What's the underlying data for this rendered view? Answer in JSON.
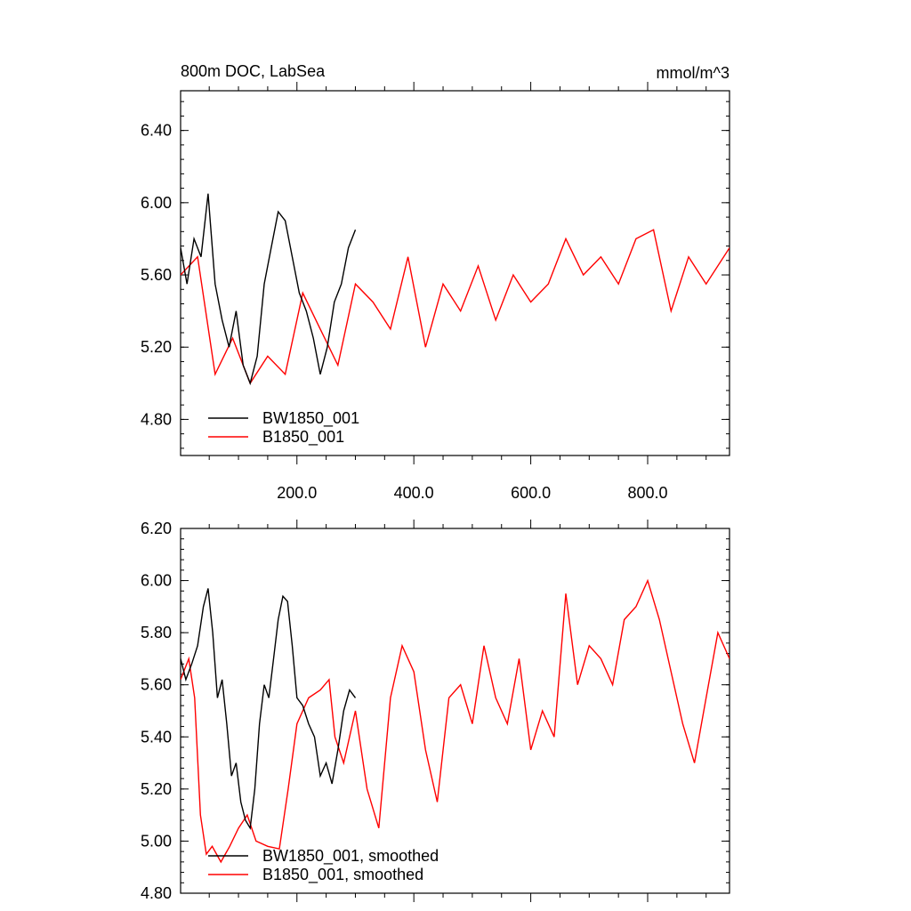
{
  "chart_data": [
    {
      "type": "line",
      "title": "800m DOC, LabSea",
      "units": "mmol/m^3",
      "xlim": [
        1,
        940
      ],
      "ylim": [
        4.6,
        6.62
      ],
      "xticks": [
        200,
        400,
        600,
        800
      ],
      "xtick_labels": [
        "200.0",
        "400.0",
        "600.0",
        "800.0"
      ],
      "yticks": [
        4.8,
        5.2,
        5.6,
        6.0,
        6.4
      ],
      "ytick_labels": [
        "4.80",
        "5.20",
        "5.60",
        "6.00",
        "6.40"
      ],
      "legend_position": "bottom-left",
      "series": [
        {
          "name": "BW1850_001",
          "color": "#000000",
          "x": [
            1,
            12,
            24,
            36,
            48,
            60,
            72,
            84,
            96,
            108,
            120,
            132,
            144,
            156,
            168,
            180,
            192,
            204,
            216,
            228,
            240,
            252,
            264,
            276,
            288,
            300
          ],
          "y": [
            5.75,
            5.55,
            5.8,
            5.7,
            6.05,
            5.55,
            5.35,
            5.2,
            5.4,
            5.1,
            5.0,
            5.15,
            5.55,
            5.75,
            5.95,
            5.9,
            5.7,
            5.5,
            5.4,
            5.25,
            5.05,
            5.2,
            5.45,
            5.55,
            5.75,
            5.85
          ]
        },
        {
          "name": "B1850_001",
          "color": "#ff0000",
          "x": [
            1,
            30,
            60,
            90,
            120,
            150,
            180,
            210,
            240,
            270,
            300,
            330,
            360,
            390,
            420,
            450,
            480,
            510,
            540,
            570,
            600,
            630,
            660,
            690,
            720,
            750,
            780,
            810,
            840,
            870,
            900,
            940
          ],
          "y": [
            5.6,
            5.7,
            5.05,
            5.25,
            5.0,
            5.15,
            5.05,
            5.5,
            5.3,
            5.1,
            5.55,
            5.45,
            5.3,
            5.7,
            5.2,
            5.55,
            5.4,
            5.65,
            5.35,
            5.6,
            5.45,
            5.55,
            5.8,
            5.6,
            5.7,
            5.55,
            5.8,
            5.85,
            5.4,
            5.7,
            5.55,
            5.75
          ]
        }
      ]
    },
    {
      "type": "line",
      "xlim": [
        1,
        940
      ],
      "ylim": [
        4.8,
        6.2
      ],
      "yticks": [
        4.8,
        5.0,
        5.2,
        5.4,
        5.6,
        5.8,
        6.0,
        6.2
      ],
      "ytick_labels": [
        "4.80",
        "5.00",
        "5.20",
        "5.40",
        "5.60",
        "5.80",
        "6.00",
        "6.20"
      ],
      "legend_position": "bottom-left",
      "series": [
        {
          "name": "BW1850_001, smoothed",
          "color": "#000000",
          "x": [
            1,
            10,
            20,
            30,
            40,
            48,
            56,
            64,
            72,
            80,
            88,
            96,
            104,
            112,
            120,
            128,
            136,
            144,
            152,
            160,
            168,
            176,
            184,
            192,
            200,
            210,
            220,
            230,
            240,
            250,
            260,
            270,
            280,
            290,
            300
          ],
          "y": [
            5.7,
            5.62,
            5.68,
            5.75,
            5.9,
            5.97,
            5.8,
            5.55,
            5.62,
            5.45,
            5.25,
            5.3,
            5.15,
            5.08,
            5.05,
            5.2,
            5.45,
            5.6,
            5.55,
            5.7,
            5.85,
            5.94,
            5.92,
            5.75,
            5.55,
            5.52,
            5.45,
            5.4,
            5.25,
            5.3,
            5.22,
            5.35,
            5.5,
            5.58,
            5.55
          ]
        },
        {
          "name": "B1850_001, smoothed",
          "color": "#ff0000",
          "x": [
            1,
            15,
            25,
            35,
            45,
            55,
            70,
            85,
            100,
            115,
            130,
            150,
            170,
            185,
            200,
            220,
            240,
            255,
            265,
            280,
            300,
            320,
            340,
            360,
            380,
            400,
            420,
            440,
            460,
            480,
            500,
            520,
            540,
            560,
            580,
            600,
            620,
            640,
            660,
            680,
            700,
            720,
            740,
            760,
            780,
            800,
            820,
            840,
            860,
            880,
            900,
            920,
            940
          ],
          "y": [
            5.62,
            5.7,
            5.55,
            5.1,
            4.95,
            4.98,
            4.92,
            4.98,
            5.05,
            5.1,
            5.0,
            4.98,
            4.97,
            5.2,
            5.45,
            5.55,
            5.58,
            5.62,
            5.4,
            5.3,
            5.5,
            5.2,
            5.05,
            5.55,
            5.75,
            5.65,
            5.35,
            5.15,
            5.55,
            5.6,
            5.45,
            5.75,
            5.55,
            5.45,
            5.7,
            5.35,
            5.5,
            5.4,
            5.95,
            5.6,
            5.75,
            5.7,
            5.6,
            5.85,
            5.9,
            6.0,
            5.85,
            5.65,
            5.45,
            5.3,
            5.55,
            5.8,
            5.7
          ]
        }
      ]
    }
  ]
}
